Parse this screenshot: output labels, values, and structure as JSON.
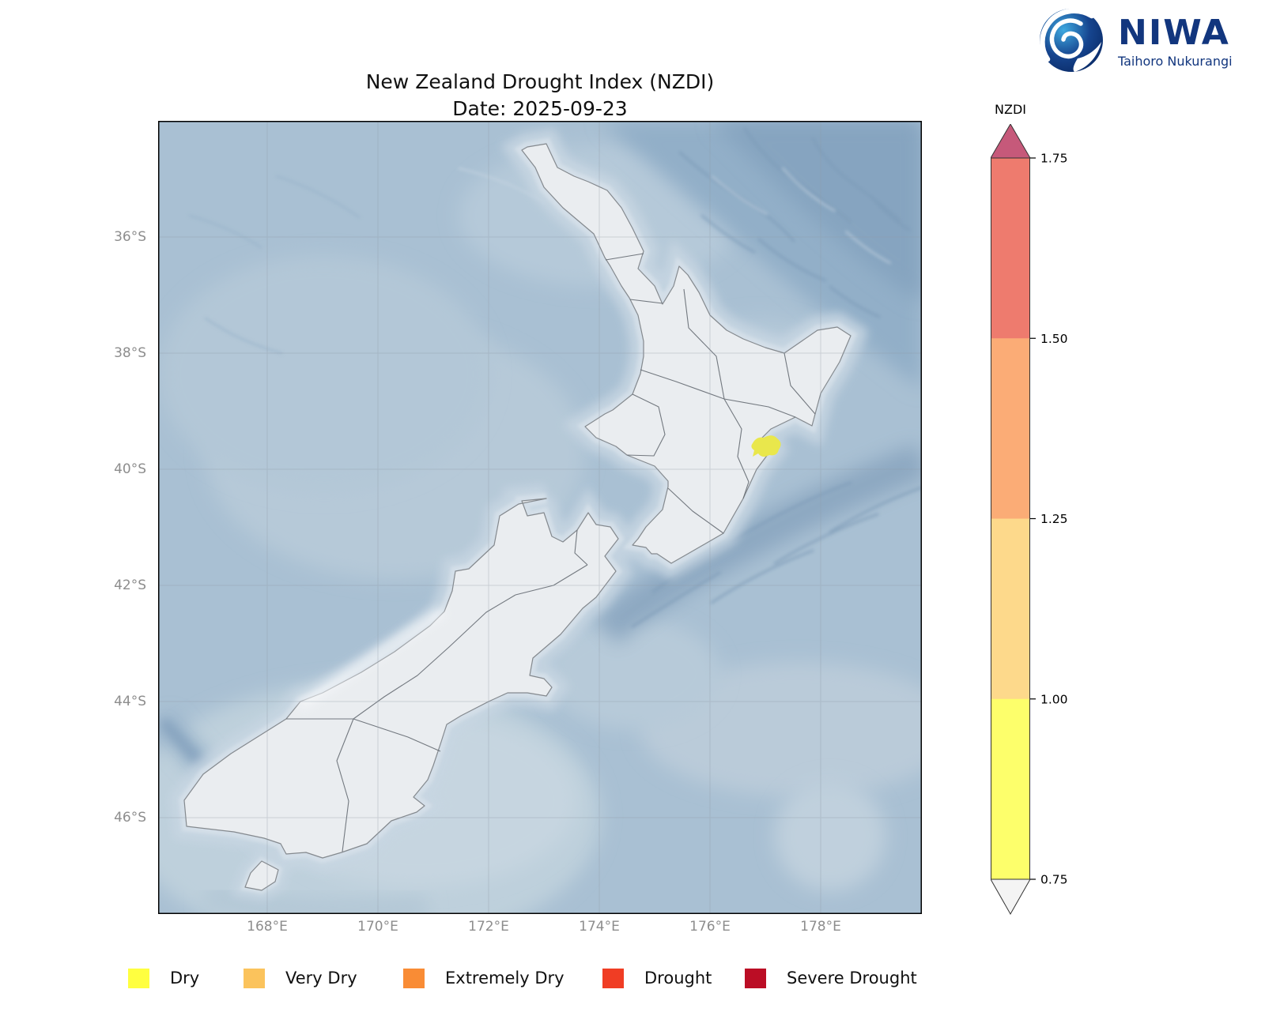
{
  "header": {
    "title": "New Zealand Drought Index (NZDI)",
    "subtitle": "Date: 2025-09-23"
  },
  "logo": {
    "name": "NIWA",
    "tagline": "Taihoro Nukurangi",
    "brand_color": "#12367e"
  },
  "map": {
    "x_ticks": [
      "168°E",
      "170°E",
      "172°E",
      "174°E",
      "176°E",
      "178°E"
    ],
    "y_ticks": [
      "36°S",
      "38°S",
      "40°S",
      "42°S",
      "44°S",
      "46°S"
    ],
    "drought_spot": {
      "category": "Dry",
      "color": "#e9e74c",
      "location": "Hawke's Bay"
    }
  },
  "colorbar": {
    "label": "NZDI",
    "ticks": [
      "1.75",
      "1.50",
      "1.25",
      "1.00",
      "0.75"
    ],
    "segments": [
      {
        "range": "above 1.75",
        "color": "#c6597a"
      },
      {
        "range": "1.50-1.75",
        "color": "#ee7b6e"
      },
      {
        "range": "1.25-1.50",
        "color": "#fbac76"
      },
      {
        "range": "1.00-1.25",
        "color": "#fdd98b"
      },
      {
        "range": "0.75-1.00",
        "color": "#fdff6b"
      },
      {
        "range": "below 0.75",
        "color": "#f4f4f4"
      }
    ]
  },
  "legend": {
    "items": [
      {
        "label": "Dry",
        "color": "#ffff40"
      },
      {
        "label": "Very Dry",
        "color": "#fbc35c"
      },
      {
        "label": "Extremely Dry",
        "color": "#f98c35"
      },
      {
        "label": "Drought",
        "color": "#f03d24"
      },
      {
        "label": "Severe Drought",
        "color": "#bb0d25"
      }
    ]
  }
}
